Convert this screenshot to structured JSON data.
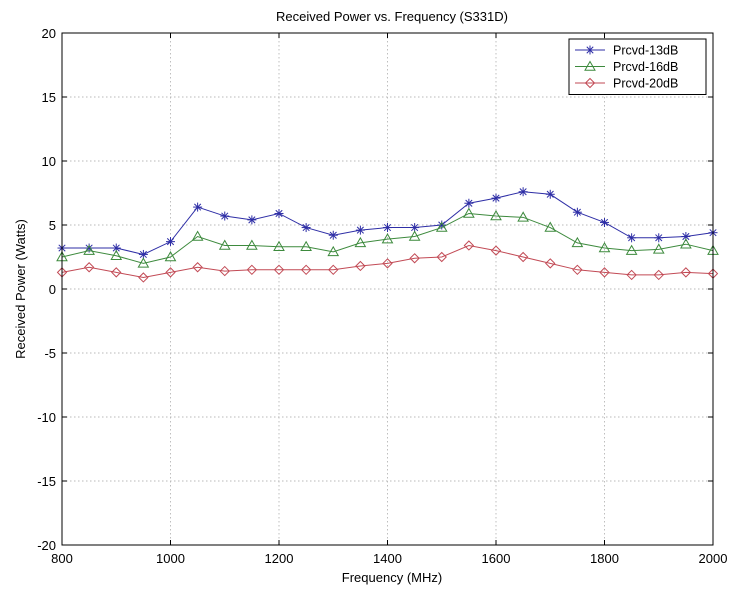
{
  "chart_data": {
    "type": "line",
    "title": "Received Power vs. Frequency (S331D)",
    "xlabel": "Frequency (MHz)",
    "ylabel": "Received Power (Watts)",
    "xlim": [
      800,
      2000
    ],
    "ylim": [
      -20,
      20
    ],
    "xticks": [
      800,
      1000,
      1200,
      1400,
      1600,
      1800,
      2000
    ],
    "yticks": [
      20,
      15,
      10,
      5,
      0,
      -5,
      -10,
      -15,
      -20
    ],
    "grid": true,
    "legend_position": "top-right",
    "x": [
      800,
      850,
      900,
      950,
      1000,
      1050,
      1100,
      1150,
      1200,
      1250,
      1300,
      1350,
      1400,
      1450,
      1500,
      1550,
      1600,
      1650,
      1700,
      1750,
      1800,
      1850,
      1900,
      1950,
      2000
    ],
    "series": [
      {
        "name": "Prcvd-13dB",
        "color": "#2e2ea6",
        "marker": "asterisk",
        "values": [
          3.2,
          3.2,
          3.2,
          2.7,
          3.7,
          6.4,
          5.7,
          5.4,
          5.9,
          4.8,
          4.2,
          4.6,
          4.8,
          4.8,
          5.0,
          6.7,
          7.1,
          7.6,
          7.4,
          6.0,
          5.2,
          4.0,
          4.0,
          4.1,
          4.4
        ]
      },
      {
        "name": "Prcvd-16dB",
        "color": "#3d8a3d",
        "marker": "triangle",
        "values": [
          2.5,
          3.0,
          2.6,
          2.0,
          2.5,
          4.1,
          3.4,
          3.4,
          3.3,
          3.3,
          2.9,
          3.6,
          3.9,
          4.1,
          4.8,
          5.9,
          5.7,
          5.6,
          4.8,
          3.6,
          3.2,
          3.0,
          3.1,
          3.5,
          3.0
        ]
      },
      {
        "name": "Prcvd-20dB",
        "color": "#c24a55",
        "marker": "diamond",
        "values": [
          1.3,
          1.7,
          1.3,
          0.9,
          1.3,
          1.7,
          1.4,
          1.5,
          1.5,
          1.5,
          1.5,
          1.8,
          2.0,
          2.4,
          2.5,
          3.4,
          3.0,
          2.5,
          2.0,
          1.5,
          1.3,
          1.1,
          1.1,
          1.3,
          1.2
        ]
      }
    ]
  }
}
